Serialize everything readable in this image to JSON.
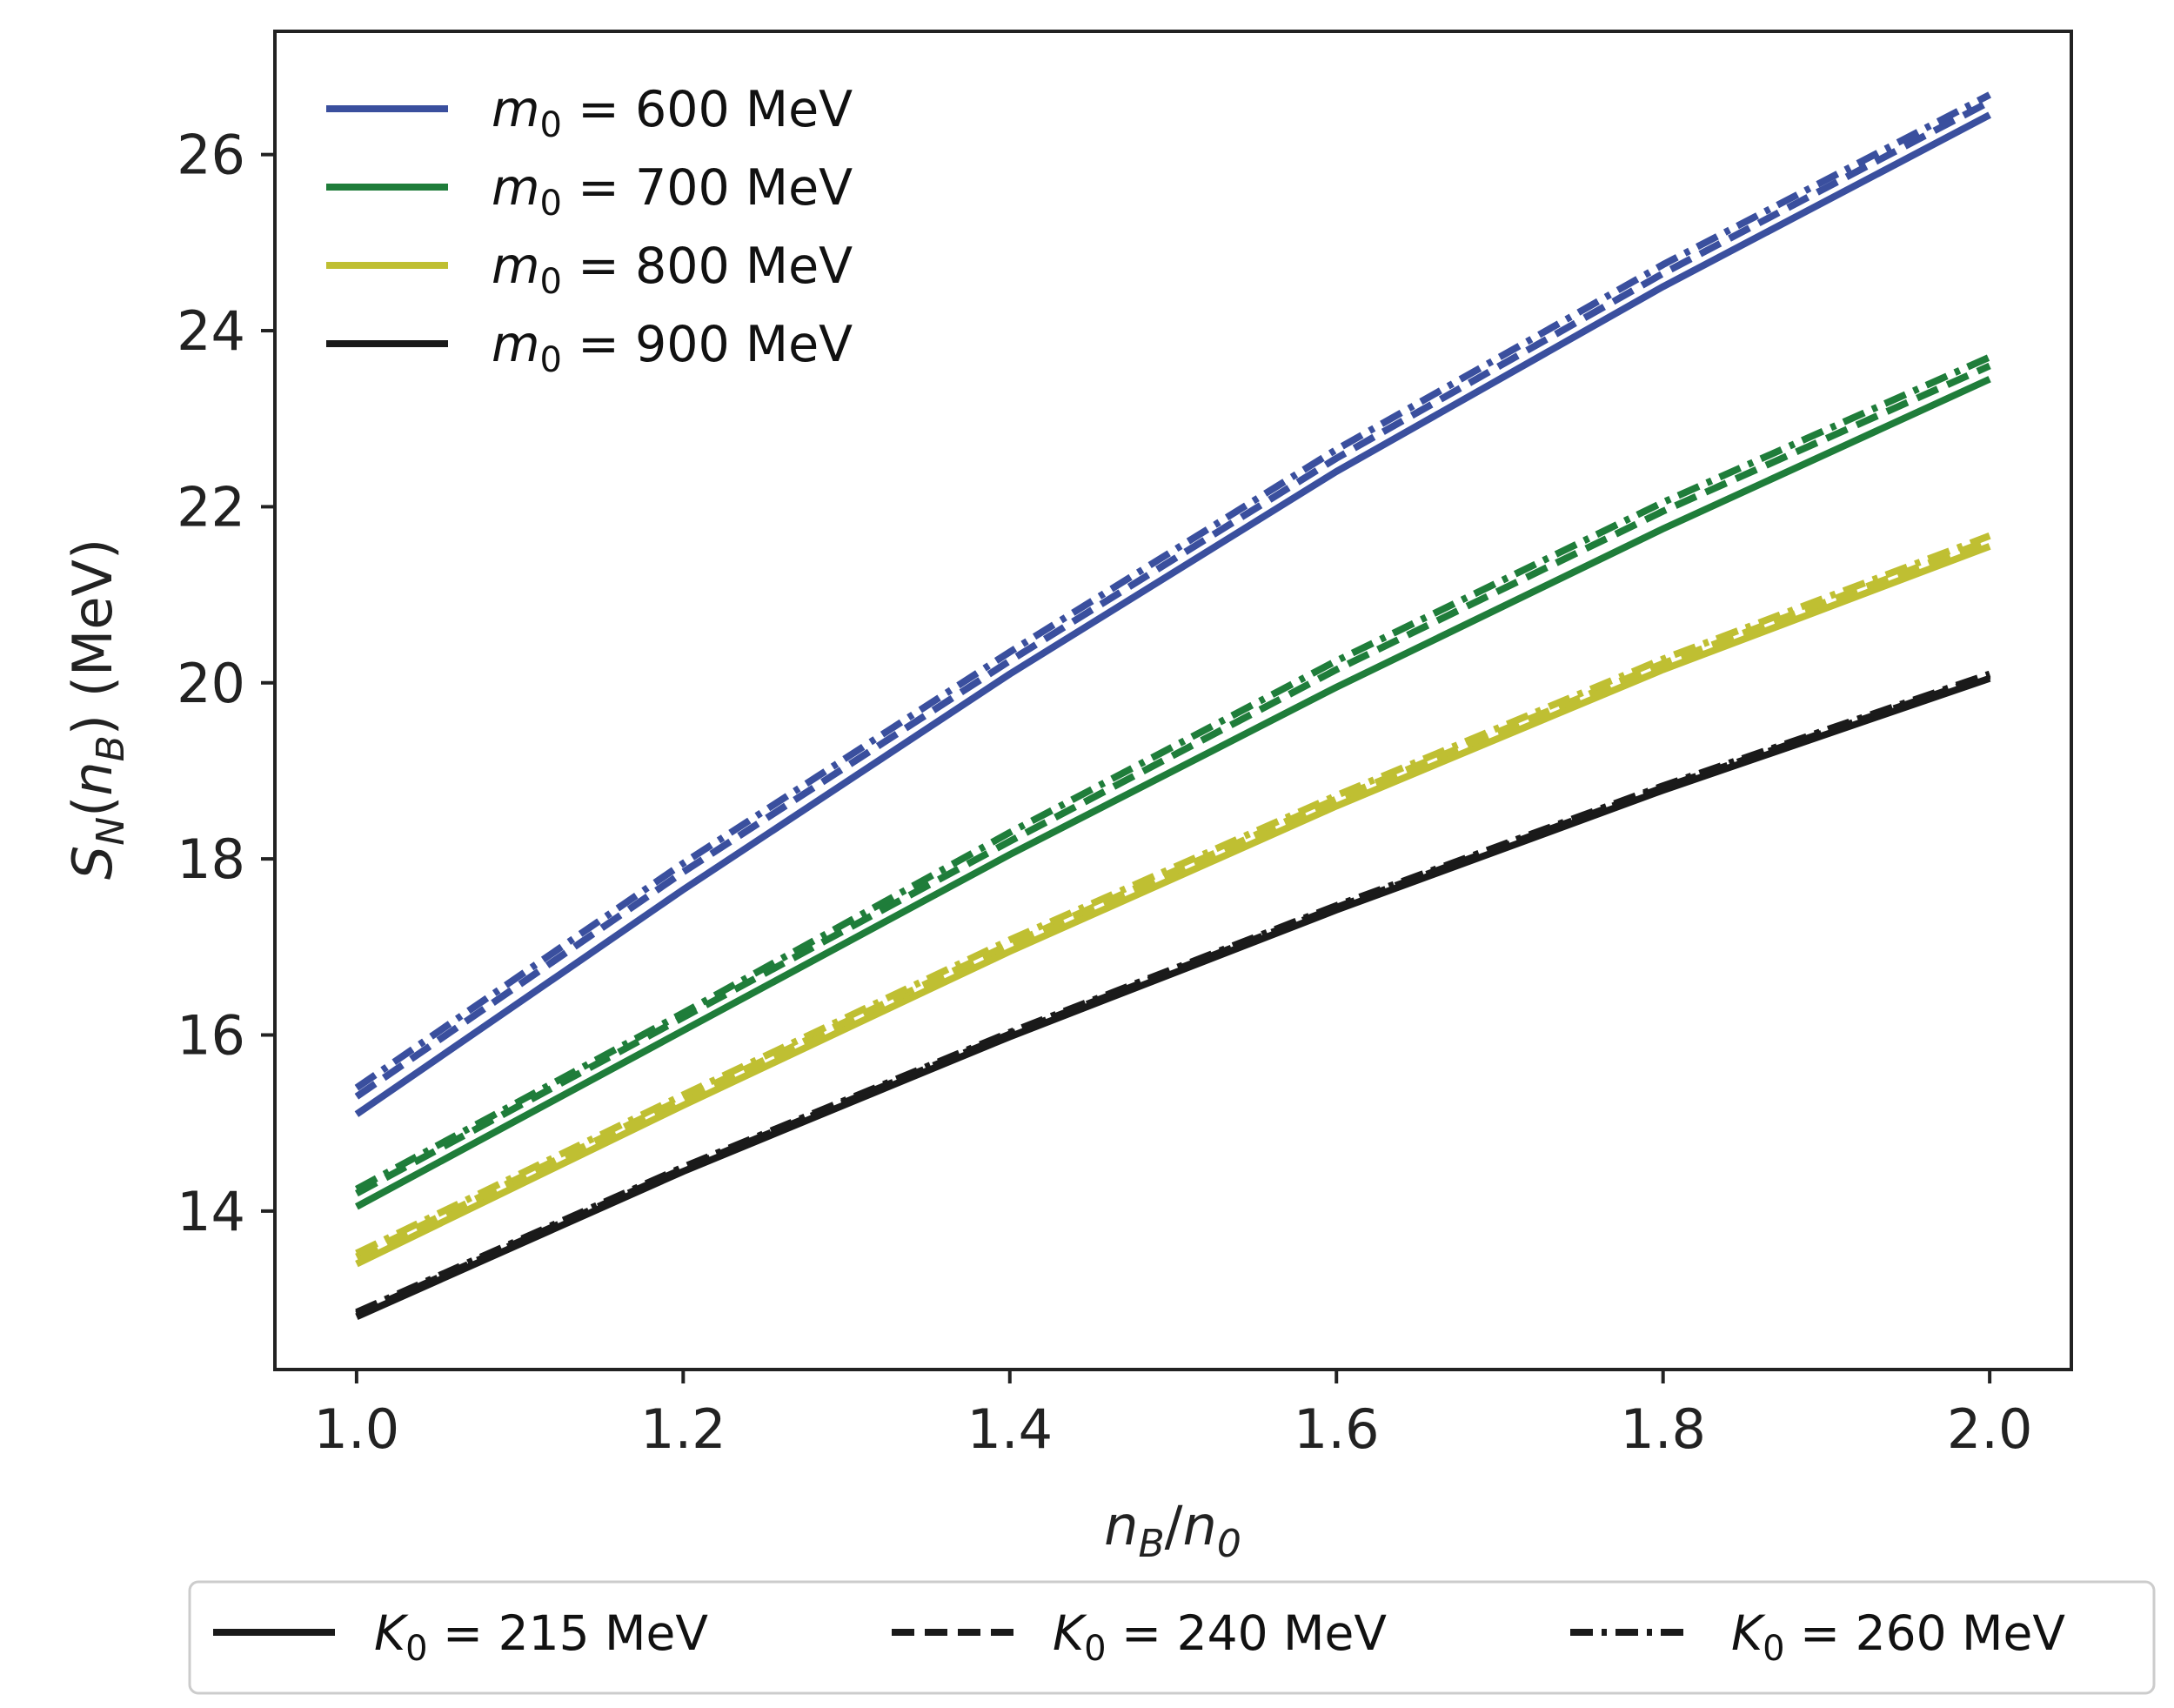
{
  "chart_data": {
    "type": "line",
    "title": "",
    "xlabel": {
      "main": "n",
      "sub": "B",
      "sep": "/",
      "main2": "n",
      "sub2": "0"
    },
    "ylabel": {
      "main": "S",
      "sub": "N",
      "open": "(",
      "arg": "n",
      "argsub": "B",
      "close": ")",
      "unit": " (MeV)"
    },
    "xlim": [
      0.95,
      2.05
    ],
    "ylim": [
      12.2,
      27.4
    ],
    "xticks": [
      1.0,
      1.2,
      1.4,
      1.6,
      1.8,
      2.0
    ],
    "xtick_labels": [
      "1.0",
      "1.2",
      "1.4",
      "1.6",
      "1.8",
      "2.0"
    ],
    "yticks": [
      14,
      16,
      18,
      20,
      22,
      24,
      26
    ],
    "ytick_labels": [
      "14",
      "16",
      "18",
      "20",
      "22",
      "24",
      "26"
    ],
    "grid": false,
    "x": [
      1.0,
      1.2,
      1.4,
      1.6,
      1.8,
      2.0
    ],
    "color_legend": {
      "placement": "upper-left",
      "entries": [
        {
          "sym": "m",
          "sub": "0",
          "rest": " = 600 MeV",
          "color": "#3a4f9e"
        },
        {
          "sym": "m",
          "sub": "0",
          "rest": " = 700 MeV",
          "color": "#1f7d3a"
        },
        {
          "sym": "m",
          "sub": "0",
          "rest": " = 800 MeV",
          "color": "#bfbf32"
        },
        {
          "sym": "m",
          "sub": "0",
          "rest": " = 900 MeV",
          "color": "#1a1a1a"
        }
      ]
    },
    "style_legend": {
      "placement": "below-plot",
      "entries": [
        {
          "sym": "K",
          "sub": "0",
          "rest": " = 215 MeV",
          "dash": "solid"
        },
        {
          "sym": "K",
          "sub": "0",
          "rest": " = 240 MeV",
          "dash": "dashed"
        },
        {
          "sym": "K",
          "sub": "0",
          "rest": " = 260 MeV",
          "dash": "dashdot"
        }
      ]
    },
    "series": [
      {
        "name": "m0 = 600 MeV, K0 = 215 MeV",
        "color": "#3a4f9e",
        "dash": "solid",
        "values": [
          15.1,
          17.65,
          20.1,
          22.4,
          24.5,
          26.45
        ]
      },
      {
        "name": "m0 = 600 MeV, K0 = 240 MeV",
        "color": "#3a4f9e",
        "dash": "dashed",
        "values": [
          15.3,
          17.85,
          20.25,
          22.55,
          24.65,
          26.6
        ]
      },
      {
        "name": "m0 = 600 MeV, K0 = 260 MeV",
        "color": "#3a4f9e",
        "dash": "dashdot",
        "values": [
          15.4,
          17.95,
          20.35,
          22.65,
          24.75,
          26.68
        ]
      },
      {
        "name": "m0 = 700 MeV, K0 = 215 MeV",
        "color": "#1f7d3a",
        "dash": "solid",
        "values": [
          14.05,
          16.05,
          18.05,
          19.95,
          21.75,
          23.45
        ]
      },
      {
        "name": "m0 = 700 MeV, K0 = 240 MeV",
        "color": "#1f7d3a",
        "dash": "dashed",
        "values": [
          14.2,
          16.2,
          18.2,
          20.15,
          21.95,
          23.6
        ]
      },
      {
        "name": "m0 = 700 MeV, K0 = 260 MeV",
        "color": "#1f7d3a",
        "dash": "dashdot",
        "values": [
          14.25,
          16.25,
          18.3,
          20.25,
          22.05,
          23.7
        ]
      },
      {
        "name": "m0 = 800 MeV, K0 = 215 MeV",
        "color": "#bfbf32",
        "dash": "solid",
        "values": [
          13.4,
          15.2,
          16.95,
          18.6,
          20.15,
          21.55
        ]
      },
      {
        "name": "m0 = 800 MeV, K0 = 240 MeV",
        "color": "#bfbf32",
        "dash": "dashed",
        "values": [
          13.48,
          15.28,
          17.03,
          18.68,
          20.22,
          21.62
        ]
      },
      {
        "name": "m0 = 800 MeV, K0 = 260 MeV",
        "color": "#bfbf32",
        "dash": "dashdot",
        "values": [
          13.52,
          15.32,
          17.08,
          18.72,
          20.27,
          21.67
        ]
      },
      {
        "name": "m0 = 900 MeV, K0 = 215 MeV",
        "color": "#1a1a1a",
        "dash": "solid",
        "values": [
          12.8,
          14.45,
          15.98,
          17.42,
          18.78,
          20.05
        ]
      },
      {
        "name": "m0 = 900 MeV, K0 = 240 MeV",
        "color": "#1a1a1a",
        "dash": "dashed",
        "values": [
          12.83,
          14.48,
          16.01,
          17.45,
          18.81,
          20.08
        ]
      },
      {
        "name": "m0 = 900 MeV, K0 = 260 MeV",
        "color": "#1a1a1a",
        "dash": "dashdot",
        "values": [
          12.85,
          14.5,
          16.03,
          17.47,
          18.83,
          20.1
        ]
      }
    ]
  }
}
